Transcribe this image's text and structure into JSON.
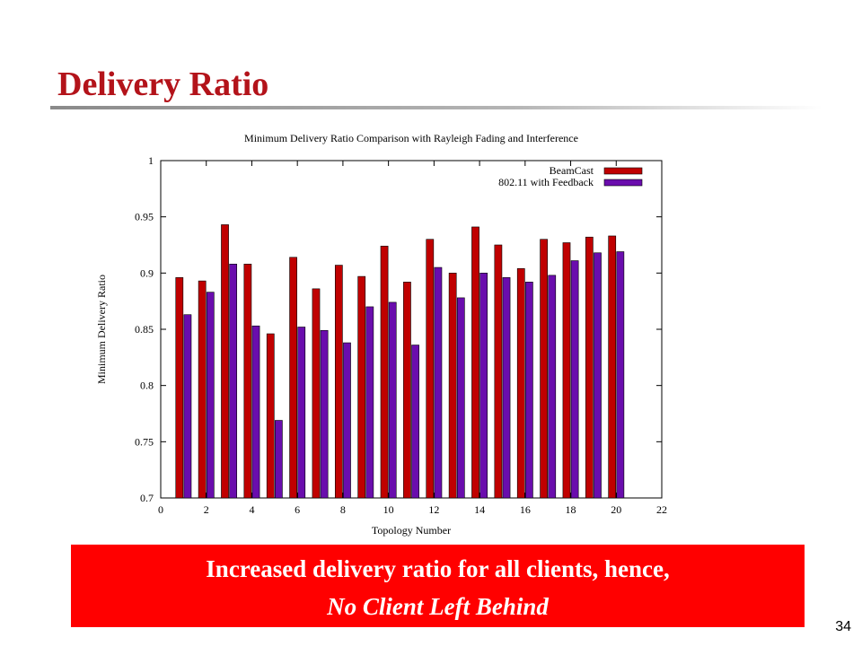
{
  "slide": {
    "title": "Delivery Ratio",
    "callout_line1": "Increased delivery ratio for all clients, hence,",
    "callout_line2": "No Client Left Behind",
    "page_number": "34"
  },
  "colors": {
    "title": "#b3131a",
    "callout_bg": "#ff0000",
    "beamcast": "#c00000",
    "feedback": "#6a0dad"
  },
  "chart_data": {
    "type": "bar",
    "title": "Minimum Delivery Ratio Comparison with Rayleigh Fading and Interference",
    "xlabel": "Topology Number",
    "ylabel": "Minimum Delivery Ratio",
    "xlim": [
      0,
      22
    ],
    "ylim": [
      0.7,
      1
    ],
    "xticks": [
      0,
      2,
      4,
      6,
      8,
      10,
      12,
      14,
      16,
      18,
      20,
      22
    ],
    "yticks": [
      0.7,
      0.75,
      0.8,
      0.85,
      0.9,
      0.95,
      1
    ],
    "ytick_labels": [
      "0.7",
      "0.75",
      "0.8",
      "0.85",
      "0.9",
      "0.95",
      "1"
    ],
    "x": [
      1,
      2,
      3,
      4,
      5,
      6,
      7,
      8,
      9,
      10,
      11,
      12,
      13,
      14,
      15,
      16,
      17,
      18,
      19,
      20
    ],
    "legend_position": "top-right",
    "grid": false,
    "series": [
      {
        "name": "BeamCast",
        "color": "#c00000",
        "values": [
          0.896,
          0.893,
          0.943,
          0.908,
          0.846,
          0.914,
          0.886,
          0.907,
          0.897,
          0.924,
          0.892,
          0.93,
          0.9,
          0.941,
          0.925,
          0.904,
          0.93,
          0.927,
          0.932,
          0.933
        ]
      },
      {
        "name": "802.11 with Feedback",
        "color": "#6a0dad",
        "values": [
          0.863,
          0.883,
          0.908,
          0.853,
          0.769,
          0.852,
          0.849,
          0.838,
          0.87,
          0.874,
          0.836,
          0.905,
          0.878,
          0.9,
          0.896,
          0.892,
          0.898,
          0.911,
          0.918,
          0.919
        ]
      }
    ]
  }
}
